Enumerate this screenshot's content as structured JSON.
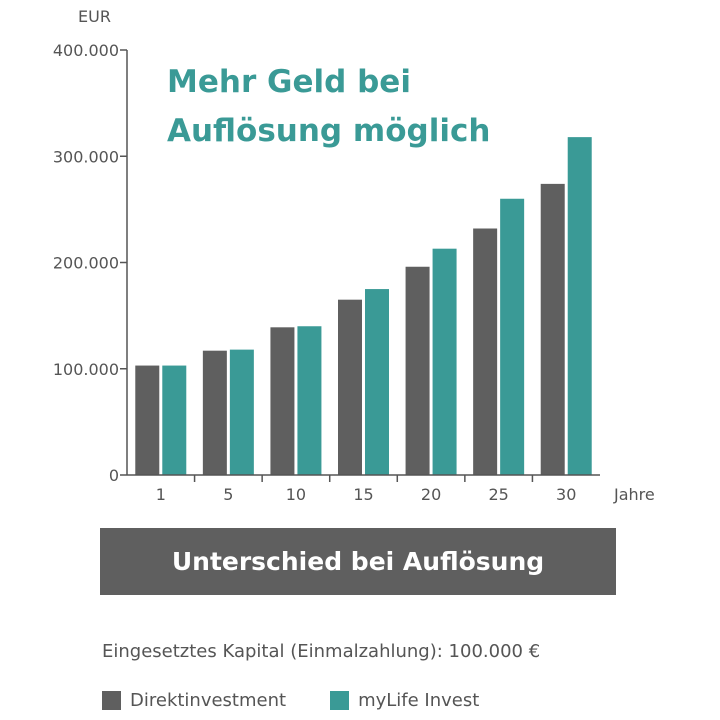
{
  "colors": {
    "direkt": "#5f5f5f",
    "mylife": "#3a9a96",
    "axis": "#555555",
    "title": "#3a9a96",
    "banner": "#5f5f5f"
  },
  "chart_data": {
    "type": "bar",
    "title_lines": [
      "Mehr Geld bei",
      "Auflösung möglich"
    ],
    "y_unit": "EUR",
    "xlabel": "Jahre",
    "categories": [
      "1",
      "5",
      "10",
      "15",
      "20",
      "25",
      "30"
    ],
    "ylim": [
      0,
      400000
    ],
    "yticks": [
      {
        "value": 0,
        "label": "0"
      },
      {
        "value": 100000,
        "label": "100.000"
      },
      {
        "value": 200000,
        "label": "200.000"
      },
      {
        "value": 300000,
        "label": "300.000"
      },
      {
        "value": 400000,
        "label": "400.000"
      }
    ],
    "series": [
      {
        "name": "Direktinvestment",
        "color": "#5f5f5f",
        "values": [
          103000,
          117000,
          139000,
          165000,
          196000,
          232000,
          274000
        ]
      },
      {
        "name": "myLife Invest",
        "color": "#3a9a96",
        "values": [
          103000,
          118000,
          140000,
          175000,
          213000,
          260000,
          318000
        ]
      }
    ],
    "grid": false
  },
  "banner": {
    "text": "Unterschied bei Auflösung"
  },
  "caption": {
    "text": "Eingesetztes Kapital (Einmalzahlung): 100.000 €"
  }
}
